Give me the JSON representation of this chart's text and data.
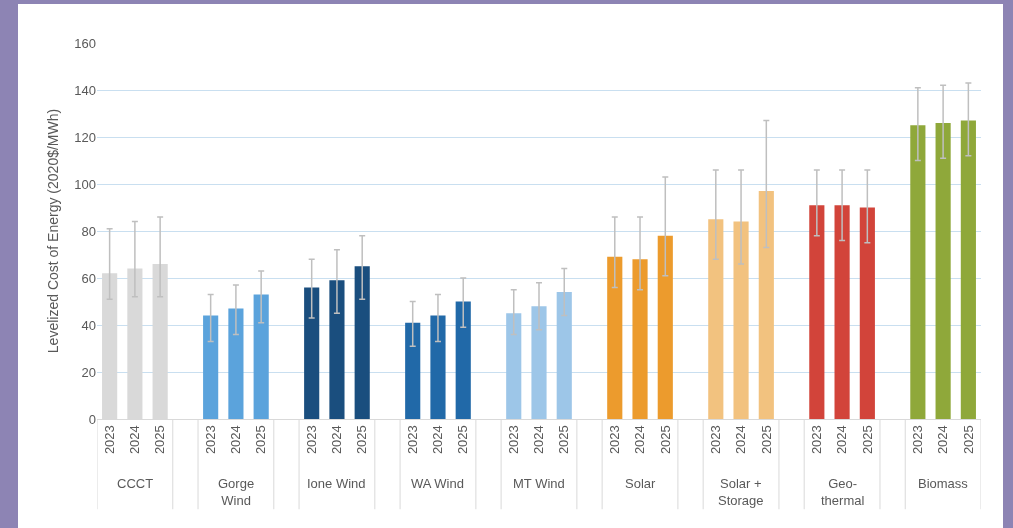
{
  "chart_data": {
    "type": "bar",
    "ylabel": "Levelized Cost of Energy (2020$/MWh)",
    "categories": [
      "2023",
      "2024",
      "2025",
      null,
      "2023",
      "2024",
      "2025",
      null,
      "2023",
      "2024",
      "2025",
      null,
      "2023",
      "2024",
      "2025",
      null,
      "2023",
      "2024",
      "2025",
      null,
      "2023",
      "2024",
      "2025",
      null,
      "2023",
      "2024",
      "2025",
      null,
      "2023",
      "2024",
      "2025",
      null,
      "2023",
      "2024",
      "2025"
    ],
    "values": [
      62,
      64,
      66,
      null,
      44,
      47,
      53,
      null,
      56,
      59,
      65,
      null,
      41,
      44,
      50,
      null,
      45,
      48,
      54,
      null,
      69,
      68,
      78,
      null,
      85,
      84,
      97,
      null,
      91,
      91,
      90,
      null,
      125,
      126,
      127
    ],
    "errors": [
      [
        51,
        81
      ],
      [
        52,
        84
      ],
      [
        52,
        86
      ],
      null,
      [
        33,
        53
      ],
      [
        36,
        57
      ],
      [
        41,
        63
      ],
      null,
      [
        43,
        68
      ],
      [
        45,
        72
      ],
      [
        51,
        78
      ],
      null,
      [
        31,
        50
      ],
      [
        33,
        53
      ],
      [
        39,
        60
      ],
      null,
      [
        36,
        55
      ],
      [
        38,
        58
      ],
      [
        44,
        64
      ],
      null,
      [
        56,
        86
      ],
      [
        55,
        86
      ],
      [
        61,
        103
      ],
      null,
      [
        68,
        106
      ],
      [
        66,
        106
      ],
      [
        73,
        127
      ],
      null,
      [
        78,
        106
      ],
      [
        76,
        106
      ],
      [
        75,
        106
      ],
      null,
      [
        110,
        141
      ],
      [
        111,
        142
      ],
      [
        112,
        143
      ]
    ],
    "colors": [
      "#d9d9d9",
      "#d9d9d9",
      "#d9d9d9",
      null,
      "#5ba3dc",
      "#5ba3dc",
      "#5ba3dc",
      null,
      "#1a4e7e",
      "#1a4e7e",
      "#1a4e7e",
      null,
      "#2169a8",
      "#2169a8",
      "#2169a8",
      null,
      "#9dc6e8",
      "#9dc6e8",
      "#9dc6e8",
      null,
      "#ec9b2d",
      "#ec9b2d",
      "#ec9b2d",
      null,
      "#f2c27f",
      "#f2c27f",
      "#f2c27f",
      null,
      "#d2443a",
      "#d2443a",
      "#d2443a",
      null,
      "#8fa83a",
      "#8fa83a",
      "#8fa83a"
    ],
    "annotations": [
      "CCCT",
      "Gorge\nWind",
      "Ione Wind",
      "WA Wind",
      "MT Wind",
      "Solar",
      "Solar +\nStorage",
      "Geo-\nthermal",
      "Biomass"
    ],
    "ylim": [
      0,
      160
    ],
    "yticks": [
      0,
      20,
      40,
      60,
      80,
      100,
      120,
      140,
      160
    ],
    "grid": "y"
  }
}
